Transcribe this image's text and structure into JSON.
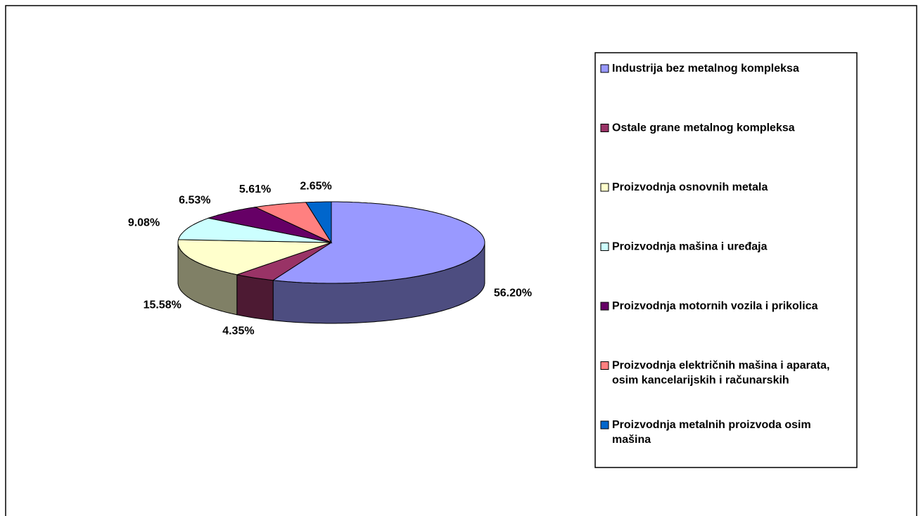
{
  "chart_data": {
    "type": "pie",
    "categories": [
      "Industrija bez metalnog kompleksa",
      "Ostale grane metalnog kompleksa",
      "Proizvodnja osnovnih metala",
      "Proizvodnja mašina i uređaja",
      "Proizvodnja motornih vozila i prikolica",
      "Proizvodnja električnih mašina i aparata, osim kancelarijskih i računarskih",
      "Proizvodnja metalnih proizvoda osim mašina"
    ],
    "values": [
      56.2,
      4.35,
      15.58,
      9.08,
      6.53,
      5.61,
      2.65
    ],
    "value_labels": [
      "56.20%",
      "4.35%",
      "15.58%",
      "9.08%",
      "6.53%",
      "5.61%",
      "2.65%"
    ],
    "colors": [
      "#9999ff",
      "#993366",
      "#ffffcc",
      "#ccffff",
      "#660066",
      "#ff8080",
      "#0066cc"
    ],
    "legend": "right"
  }
}
